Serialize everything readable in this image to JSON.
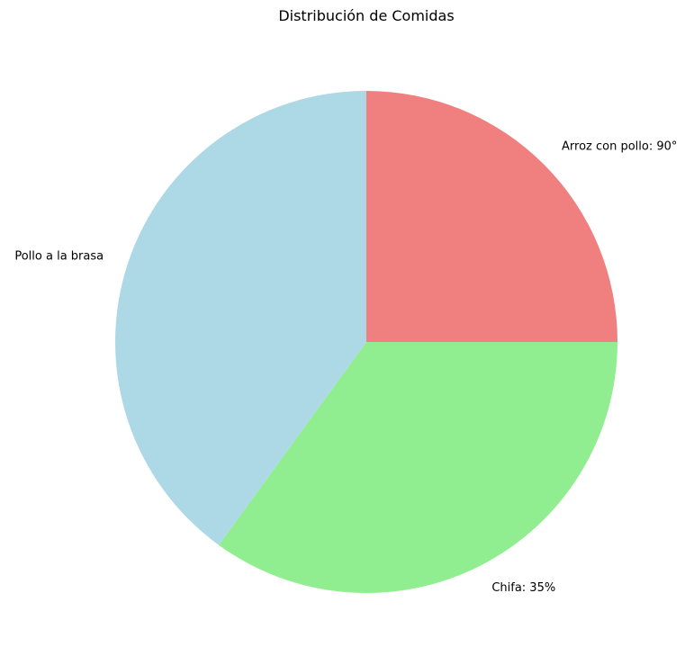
{
  "chart_data": {
    "type": "pie",
    "title": "Distribución de Comidas",
    "start_angle_deg": 90,
    "direction": "clockwise",
    "slices": [
      {
        "label": "Arroz con pollo: 90°",
        "value": 25,
        "color": "#f08080"
      },
      {
        "label": "Chifa: 35%",
        "value": 35,
        "color": "#90ee90"
      },
      {
        "label": "Pollo a la brasa",
        "value": 40,
        "color": "#add8e6"
      }
    ]
  }
}
